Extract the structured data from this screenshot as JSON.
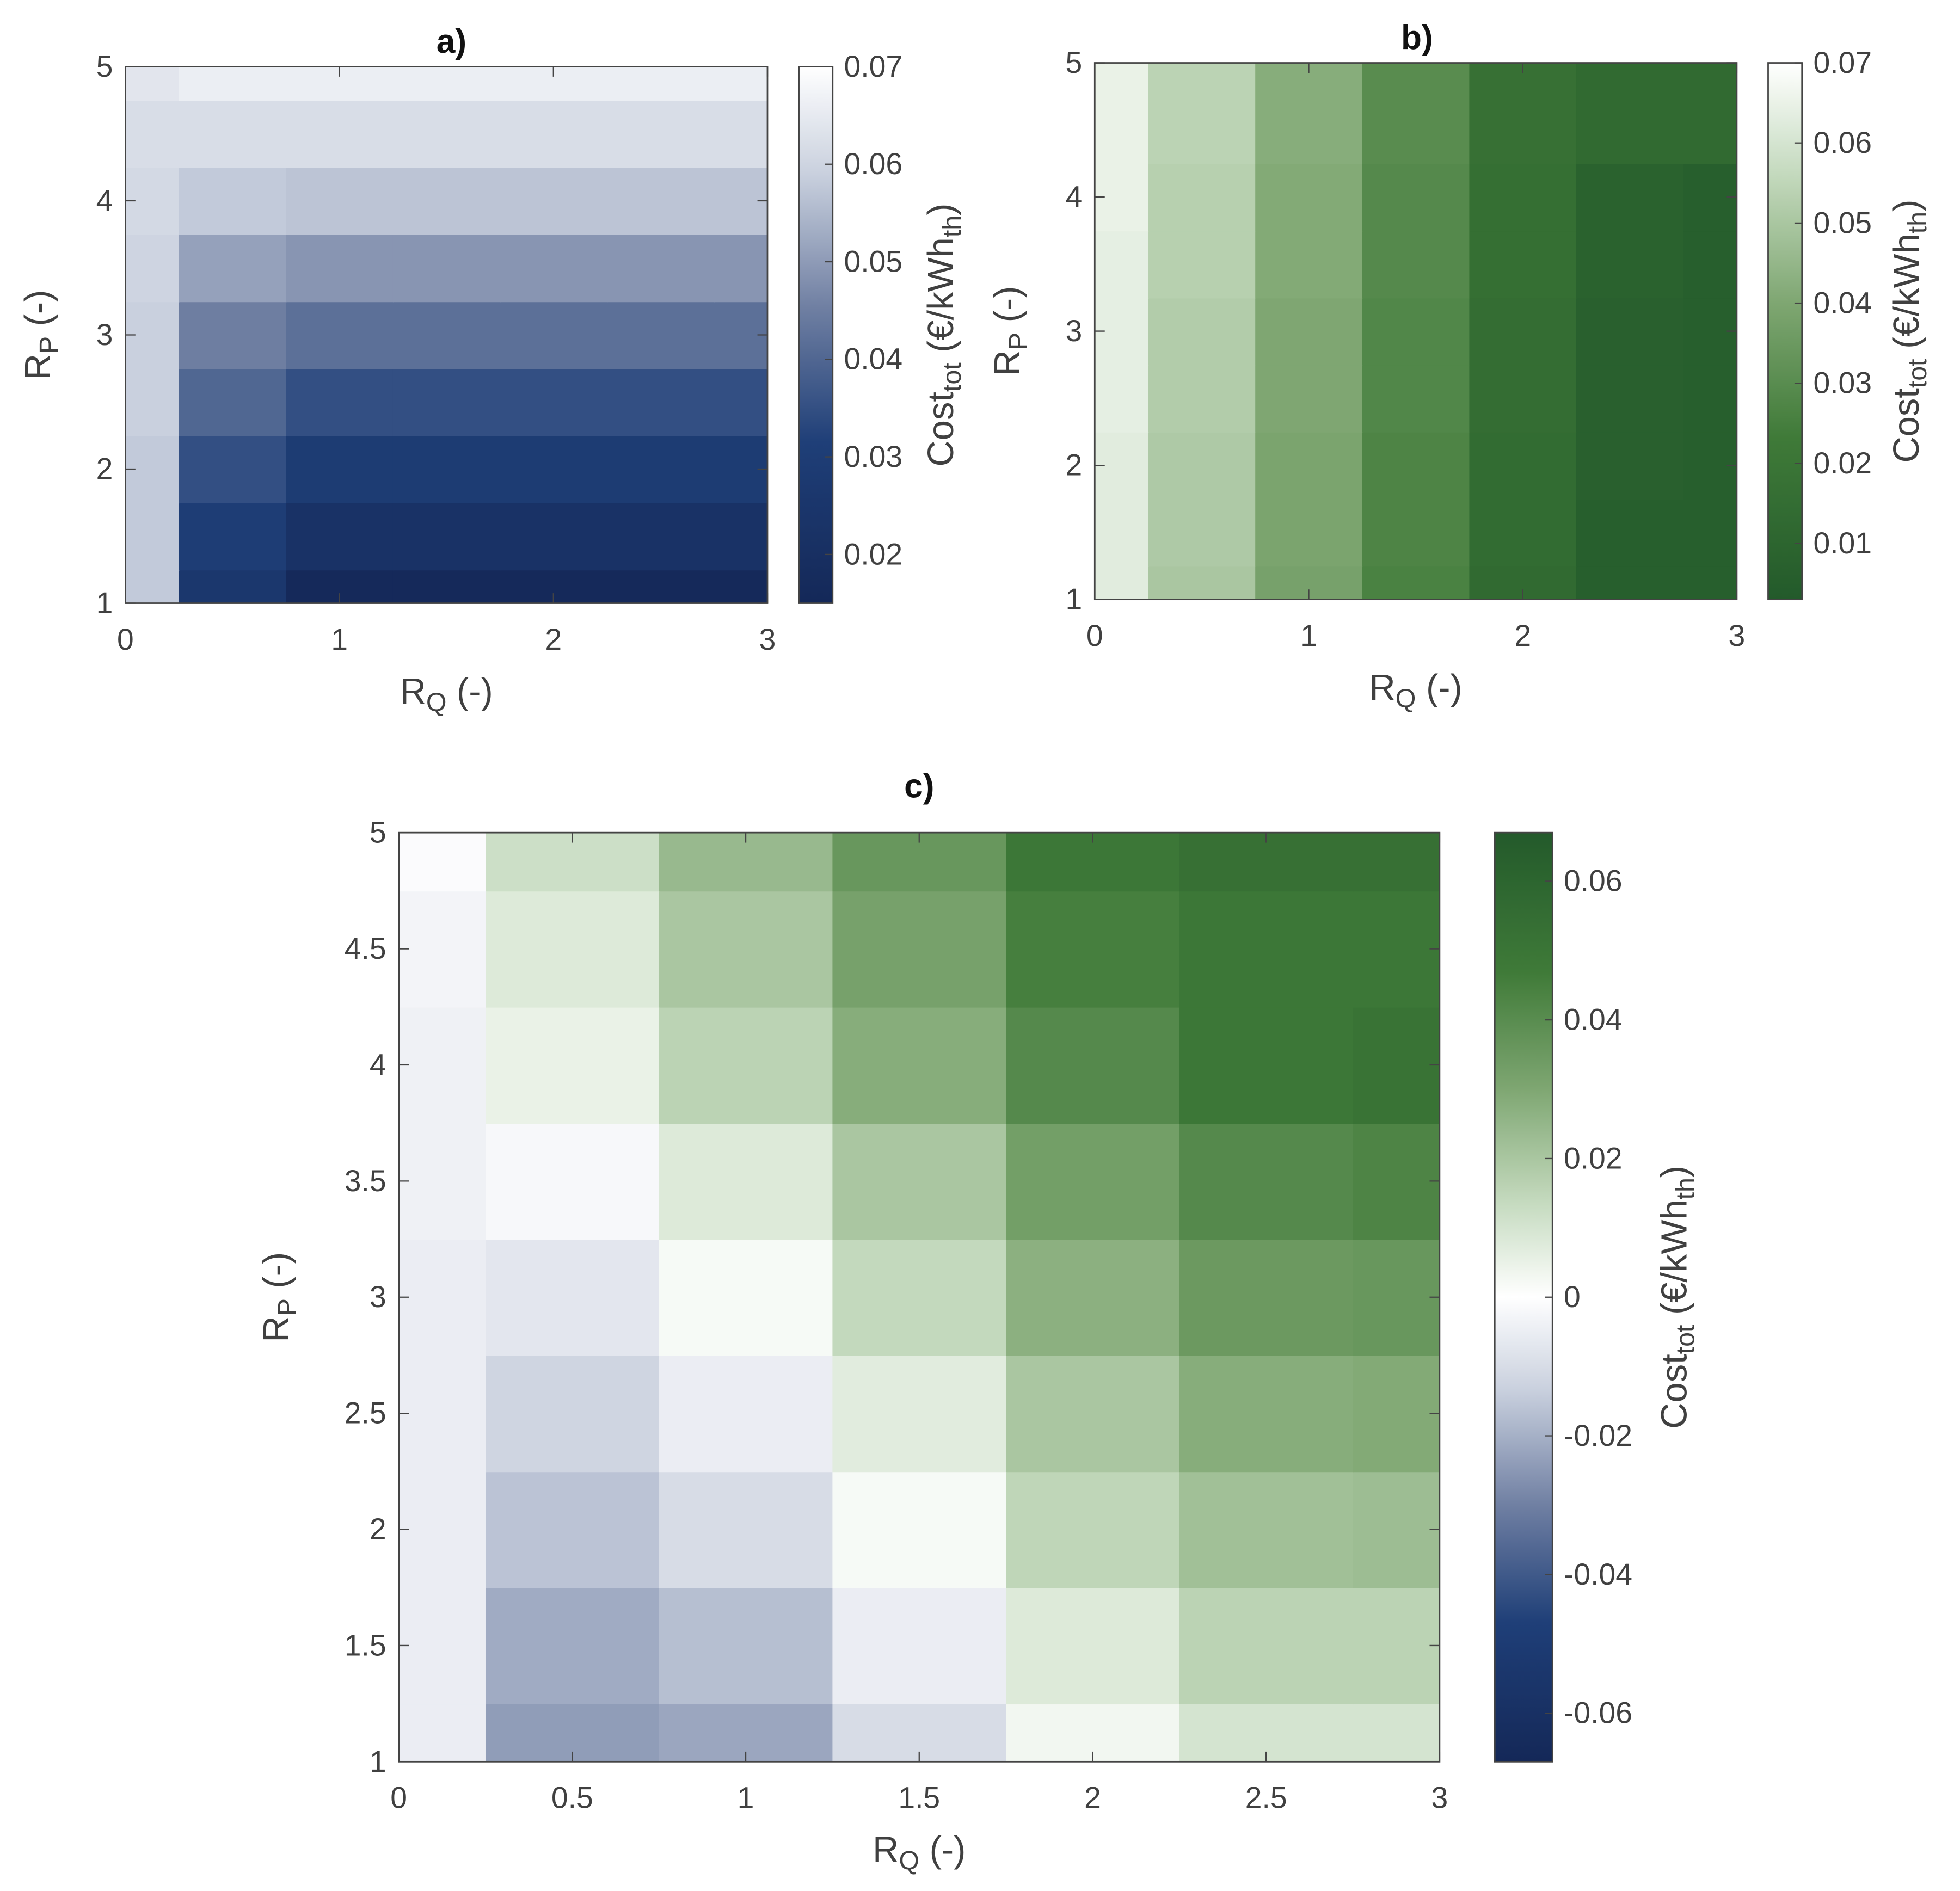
{
  "chart_data": [
    {
      "type": "contourf",
      "title": "a)",
      "colormap": "blue",
      "xlabel": [
        "R",
        "Q",
        " (-)"
      ],
      "ylabel": [
        "R",
        "P",
        " (-)"
      ],
      "colorbar_label": [
        "Cost",
        "tot",
        " (€/kWh",
        "th",
        ")"
      ],
      "x": [
        0,
        0.5,
        1,
        1.5,
        2,
        2.5,
        3
      ],
      "y": [
        1,
        1.5,
        2,
        2.5,
        3,
        3.5,
        4,
        4.5,
        5
      ],
      "z": [
        [
          0.058,
          0.026,
          0.016,
          0.016,
          0.016,
          0.016,
          0.016
        ],
        [
          0.058,
          0.03,
          0.022,
          0.022,
          0.022,
          0.022,
          0.022
        ],
        [
          0.058,
          0.035,
          0.029,
          0.029,
          0.029,
          0.029,
          0.029
        ],
        [
          0.059,
          0.04,
          0.035,
          0.035,
          0.035,
          0.035,
          0.035
        ],
        [
          0.059,
          0.045,
          0.042,
          0.042,
          0.042,
          0.042,
          0.042
        ],
        [
          0.06,
          0.051,
          0.049,
          0.049,
          0.049,
          0.049,
          0.049
        ],
        [
          0.061,
          0.058,
          0.057,
          0.057,
          0.057,
          0.057,
          0.057
        ],
        [
          0.062,
          0.062,
          0.062,
          0.062,
          0.062,
          0.062,
          0.062
        ],
        [
          0.064,
          0.066,
          0.066,
          0.066,
          0.066,
          0.066,
          0.066
        ]
      ],
      "xlim": [
        0,
        3
      ],
      "ylim": [
        1,
        5
      ],
      "xticks": [
        0,
        1,
        2,
        3
      ],
      "yticks": [
        1,
        2,
        3,
        4,
        5
      ],
      "clim": [
        0.015,
        0.07
      ],
      "cticks": [
        0.02,
        0.03,
        0.04,
        0.05,
        0.06,
        0.07
      ]
    },
    {
      "type": "contourf",
      "title": "b)",
      "colormap": "green",
      "xlabel": [
        "R",
        "Q",
        " (-)"
      ],
      "ylabel": [
        "R",
        "P",
        " (-)"
      ],
      "colorbar_label": [
        "Cost",
        "tot",
        " (€/kWh",
        "th",
        ")"
      ],
      "x": [
        0,
        0.5,
        1,
        1.5,
        2,
        2.5,
        3
      ],
      "y": [
        1,
        1.5,
        2,
        2.5,
        3,
        3.5,
        4,
        4.5,
        5
      ],
      "z": [
        [
          0.063,
          0.05,
          0.038,
          0.026,
          0.013,
          0.006,
          0.006
        ],
        [
          0.063,
          0.051,
          0.039,
          0.027,
          0.014,
          0.006,
          0.006
        ],
        [
          0.063,
          0.051,
          0.039,
          0.027,
          0.014,
          0.007,
          0.006
        ],
        [
          0.064,
          0.052,
          0.04,
          0.028,
          0.015,
          0.007,
          0.006
        ],
        [
          0.064,
          0.052,
          0.04,
          0.028,
          0.015,
          0.007,
          0.006
        ],
        [
          0.064,
          0.053,
          0.041,
          0.029,
          0.016,
          0.008,
          0.006
        ],
        [
          0.065,
          0.053,
          0.041,
          0.029,
          0.016,
          0.008,
          0.006
        ],
        [
          0.065,
          0.054,
          0.042,
          0.03,
          0.017,
          0.013,
          0.013
        ],
        [
          0.065,
          0.054,
          0.042,
          0.03,
          0.017,
          0.013,
          0.013
        ]
      ],
      "xlim": [
        0,
        3
      ],
      "ylim": [
        1,
        5
      ],
      "xticks": [
        0,
        1,
        2,
        3
      ],
      "yticks": [
        1,
        2,
        3,
        4,
        5
      ],
      "clim": [
        0.003,
        0.07
      ],
      "cticks": [
        0.01,
        0.02,
        0.03,
        0.04,
        0.05,
        0.06,
        0.07
      ]
    },
    {
      "type": "heatmap",
      "title": "c)",
      "colormap": "diverging",
      "xlabel": [
        "R",
        "Q",
        " (-)"
      ],
      "ylabel": [
        "R",
        "P",
        " (-)"
      ],
      "colorbar_label": [
        "Cost",
        "tot",
        " (€/kWh",
        "th",
        ")"
      ],
      "x": [
        0,
        0.5,
        1,
        1.5,
        2,
        2.5,
        3
      ],
      "y": [
        1,
        1.5,
        2,
        2.5,
        3,
        3.5,
        4,
        4.5,
        5
      ],
      "z": [
        [
          -0.005,
          -0.024,
          -0.022,
          -0.01,
          0.003,
          0.01,
          0.01
        ],
        [
          -0.005,
          -0.021,
          -0.017,
          -0.005,
          0.008,
          0.016,
          0.016
        ],
        [
          -0.005,
          -0.016,
          -0.01,
          0.002,
          0.015,
          0.022,
          0.023
        ],
        [
          -0.005,
          -0.012,
          -0.005,
          0.007,
          0.02,
          0.028,
          0.029
        ],
        [
          -0.005,
          -0.007,
          0.002,
          0.014,
          0.027,
          0.035,
          0.036
        ],
        [
          -0.004,
          -0.002,
          0.008,
          0.02,
          0.033,
          0.041,
          0.043
        ],
        [
          -0.004,
          0.005,
          0.016,
          0.028,
          0.041,
          0.049,
          0.051
        ],
        [
          -0.003,
          0.008,
          0.02,
          0.032,
          0.045,
          0.049,
          0.049
        ],
        [
          -0.001,
          0.012,
          0.024,
          0.036,
          0.049,
          0.053,
          0.053
        ]
      ],
      "xlim": [
        0,
        3
      ],
      "ylim": [
        1,
        5
      ],
      "xticks": [
        0,
        0.5,
        1,
        1.5,
        2,
        2.5,
        3
      ],
      "yticks": [
        1,
        1.5,
        2,
        2.5,
        3,
        3.5,
        4,
        4.5,
        5
      ],
      "clim": [
        -0.067,
        0.067
      ],
      "cticks": [
        -0.06,
        -0.04,
        -0.02,
        0,
        0.02,
        0.04,
        0.06
      ]
    }
  ]
}
